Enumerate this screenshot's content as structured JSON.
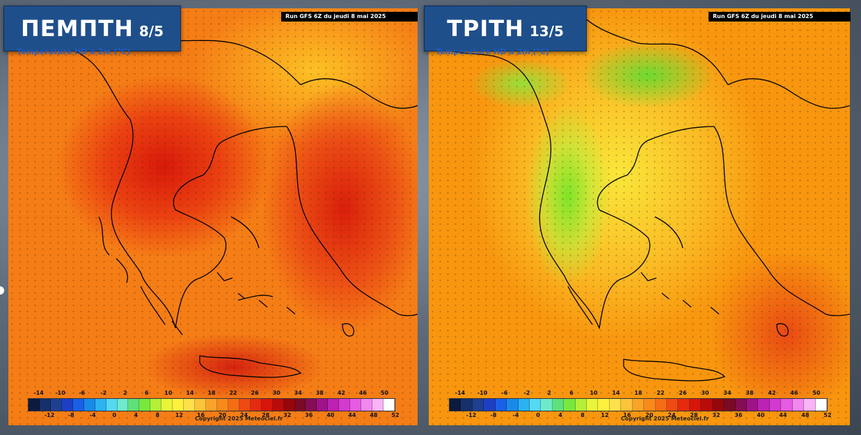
{
  "left_panel": {
    "day": "ΠΕΜΠΤΗ",
    "date": "8/5",
    "run": "Run GFS 6Z du jeudi 8 mai 2025",
    "variable": "Temperature HD a 2m (°C)",
    "copyright": "Copyright 2025 Meteociel.fr"
  },
  "right_panel": {
    "day": "ΤΡΙΤΗ",
    "date": "13/5",
    "run": "Run GFS 6Z du jeudi 8 mai 2025",
    "variable": "Temperature HD a 2m (°C)",
    "copyright": "Copyright 2025 Meteociel.fr"
  },
  "scale": {
    "top_labels": [
      "-14",
      "-10",
      "-6",
      "-2",
      "2",
      "6",
      "10",
      "14",
      "18",
      "22",
      "26",
      "30",
      "34",
      "38",
      "42",
      "46",
      "50"
    ],
    "bottom_labels": [
      "-12",
      "-8",
      "-4",
      "0",
      "4",
      "8",
      "12",
      "16",
      "20",
      "24",
      "28",
      "32",
      "36",
      "40",
      "44",
      "48",
      "52"
    ],
    "colors": [
      "#0b1a3f",
      "#16306b",
      "#1f3f91",
      "#1d3fc4",
      "#1960e6",
      "#1a8ae8",
      "#2ab3f0",
      "#55d8f2",
      "#6ee9c9",
      "#5fe07a",
      "#78e83e",
      "#b4ef3a",
      "#e9f53a",
      "#fdf03e",
      "#fde14b",
      "#fcc43a",
      "#f9a429",
      "#f88a1c",
      "#f56d14",
      "#ee4a12",
      "#e52a10",
      "#d6150c",
      "#b80c0a",
      "#96070a",
      "#7a0a25",
      "#840d55",
      "#9e1388",
      "#bb22b3",
      "#d23ad0",
      "#e55be1",
      "#f088ee",
      "#f7b4f6",
      "#ffffff"
    ]
  }
}
